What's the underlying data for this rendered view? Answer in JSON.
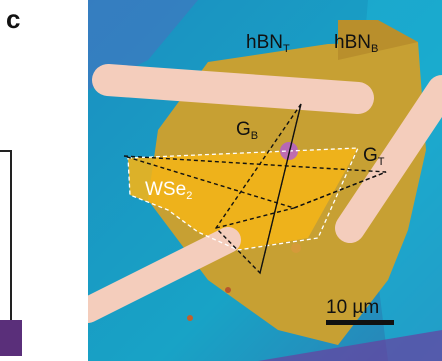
{
  "panel_label": "c",
  "labels": {
    "hbn_top_main": "hBN",
    "hbn_top_sub": "T",
    "hbn_bottom_main": "hBN",
    "hbn_bottom_sub": "B",
    "gate_bottom_main": "G",
    "gate_bottom_sub": "B",
    "gate_top_main": "G",
    "gate_top_sub": "T",
    "wse2_main": "WSe",
    "wse2_sub": "2"
  },
  "scale_bar": {
    "text": "10 µm"
  },
  "colors": {
    "substrate": "#1aa0c8",
    "hbn": "#c99a2e",
    "wse2": "#f0b21a",
    "electrode": "#f4c8b4"
  }
}
